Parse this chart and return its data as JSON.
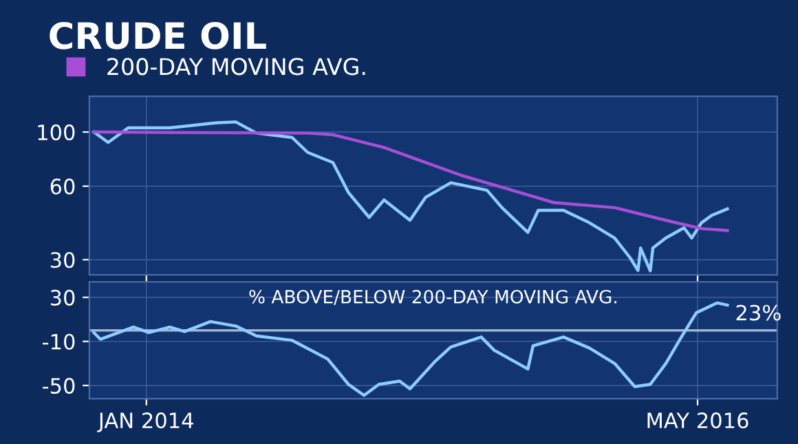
{
  "chart_data": [
    {
      "type": "line",
      "title": "CRUDE OIL",
      "log": "y",
      "legend": "top left",
      "grid": true,
      "tick_labels": "y",
      "marker": "none",
      "line_style": "solid",
      "xlim": [
        "2013-10-05",
        "2016-09-01"
      ],
      "xticks": [
        {
          "value": "2014-01-01",
          "label": null
        },
        {
          "value": "2016-05-01",
          "label": null
        }
      ],
      "ylim": [
        26,
        140
      ],
      "yticks": [
        30,
        60,
        100
      ],
      "series": [
        {
          "color": "#8ecbff",
          "x": [
            "2013-10-12",
            "2013-11-03",
            "2013-12-04",
            "2014-02-06",
            "2014-04-18",
            "2014-05-19",
            "2014-06-20",
            "2014-08-14",
            "2014-09-07",
            "2014-10-16",
            "2014-11-09",
            "2014-12-11",
            "2015-01-03",
            "2015-02-12",
            "2015-03-08",
            "2015-04-16",
            "2015-06-11",
            "2015-07-04",
            "2015-08-13",
            "2015-08-29",
            "2015-10-07",
            "2015-11-16",
            "2015-12-25",
            "2016-01-18",
            "2016-01-30",
            "2016-02-03",
            "2016-02-18",
            "2016-02-22",
            "2016-03-13",
            "2016-04-10",
            "2016-04-22",
            "2016-05-07",
            "2016-05-23",
            "2016-06-16"
          ],
          "values": [
            100,
            90.6,
            104,
            104,
            109,
            110,
            99,
            95,
            82.5,
            75,
            56.5,
            44.7,
            52.7,
            43.5,
            54,
            62,
            57.7,
            49,
            38.8,
            47.8,
            47.8,
            42.5,
            36.8,
            30.5,
            27.1,
            33.5,
            27,
            33.5,
            36.8,
            40.5,
            36.8,
            42.5,
            45.6,
            48.4
          ]
        },
        {
          "name": "200-DAY MOVING AVG.",
          "color": "#a64fd6",
          "x": [
            "2013-10-12",
            "2014-09-07",
            "2014-10-16",
            "2015-01-03",
            "2015-05-02",
            "2015-07-20",
            "2015-09-22",
            "2015-12-25",
            "2016-03-13",
            "2016-05-07",
            "2016-06-16"
          ],
          "values": [
            100,
            99,
            97.5,
            86.4,
            66.5,
            57.7,
            51.4,
            49,
            43.5,
            40.2,
            39.5
          ]
        }
      ]
    },
    {
      "type": "line",
      "title": "% ABOVE/BELOW 200-DAY MOVING AVG.",
      "grid": true,
      "marker": "none",
      "line_style": "solid",
      "xlim": [
        "2013-10-05",
        "2016-09-01"
      ],
      "xticks": [
        {
          "value": "2014-01-01",
          "label": "JAN 2014"
        },
        {
          "value": "2016-05-01",
          "label": "MAY 2016"
        }
      ],
      "ylim": [
        -62,
        44
      ],
      "yticks": [
        -50,
        -10,
        30
      ],
      "ref_lines": [
        {
          "axis": "y",
          "value": 0,
          "color": "#9fb4d6"
        }
      ],
      "annotations": [
        {
          "text": "23%",
          "x": "2016-06-16",
          "y": 23
        }
      ],
      "series": [
        {
          "color": "#8ecbff",
          "x": [
            "2013-10-12",
            "2013-10-22",
            "2013-12-12",
            "2014-01-05",
            "2014-02-06",
            "2014-03-01",
            "2014-04-10",
            "2014-05-19",
            "2014-06-20",
            "2014-08-14",
            "2014-10-08",
            "2014-11-09",
            "2014-12-03",
            "2014-12-26",
            "2015-01-27",
            "2015-02-12",
            "2015-03-23",
            "2015-04-16",
            "2015-06-02",
            "2015-06-22",
            "2015-08-13",
            "2015-08-21",
            "2015-10-07",
            "2015-11-16",
            "2015-12-25",
            "2016-01-25",
            "2016-02-18",
            "2016-03-13",
            "2016-04-05",
            "2016-04-29",
            "2016-05-31",
            "2016-06-16"
          ],
          "values": [
            -2,
            -8,
            3,
            -2,
            3,
            -1,
            8,
            4,
            -5,
            -9,
            -26,
            -49,
            -59,
            -49,
            -46,
            -53,
            -28,
            -15,
            -6,
            -18,
            -35,
            -14,
            -6,
            -16,
            -30,
            -51,
            -49,
            -30,
            -7,
            16,
            25,
            23
          ]
        }
      ]
    }
  ]
}
